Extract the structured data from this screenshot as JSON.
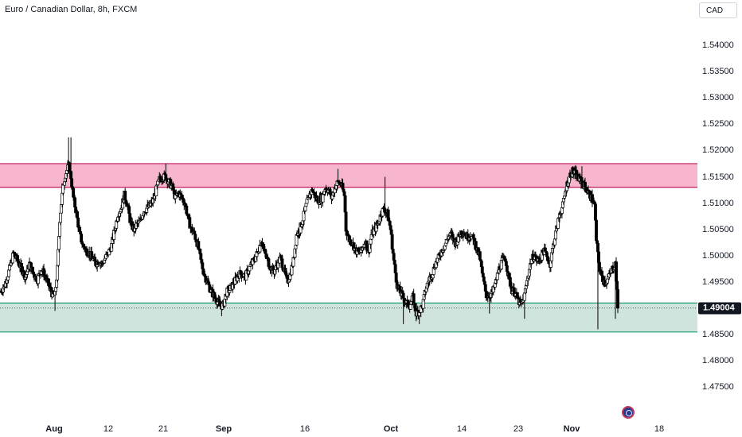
{
  "header": {
    "symbol_title": "Euro / Canadian Dollar, 8h, FXCM"
  },
  "price_axis": {
    "currency": "CAD",
    "ticks": [
      "1.54000",
      "1.53500",
      "1.53000",
      "1.52500",
      "1.52000",
      "1.51500",
      "1.51000",
      "1.50500",
      "1.50000",
      "1.49500",
      "1.49000",
      "1.48500",
      "1.48000",
      "1.47500"
    ],
    "last_price_label": "1.49004"
  },
  "time_axis": {
    "labels": [
      {
        "text": "Aug",
        "bold": true
      },
      {
        "text": "12",
        "bold": false
      },
      {
        "text": "21",
        "bold": false
      },
      {
        "text": "Sep",
        "bold": true
      },
      {
        "text": "16",
        "bold": false
      },
      {
        "text": "Oct",
        "bold": true
      },
      {
        "text": "14",
        "bold": false
      },
      {
        "text": "23",
        "bold": false
      },
      {
        "text": "Nov",
        "bold": true
      },
      {
        "text": "18",
        "bold": false
      }
    ]
  },
  "colors": {
    "bull_candle": "#ffffff",
    "bear_candle": "#000000",
    "candle_outline": "#000000",
    "resistance_zone": "#f7b6cd",
    "resistance_border": "#c2185b",
    "support_zone": "#d0e4de",
    "support_border": "#1a9e6e",
    "last_price_line": "#131722"
  },
  "chart_data": {
    "type": "candlestick",
    "title": "Euro / Canadian Dollar, 8h, FXCM",
    "ylim": [
      1.4725,
      1.5435
    ],
    "zones": [
      {
        "kind": "resistance",
        "low": 1.513,
        "high": 1.5175
      },
      {
        "kind": "support",
        "low": 1.4855,
        "high": 1.491
      }
    ],
    "last_price": 1.49004,
    "close_path": [
      [
        0,
        1.493
      ],
      [
        6,
        1.4945
      ],
      [
        12,
        1.4975
      ],
      [
        17,
        1.5005
      ],
      [
        22,
        1.499
      ],
      [
        27,
        1.4975
      ],
      [
        32,
        1.496
      ],
      [
        37,
        1.4985
      ],
      [
        42,
        1.4965
      ],
      [
        47,
        1.4955
      ],
      [
        52,
        1.4975
      ],
      [
        57,
        1.496
      ],
      [
        62,
        1.494
      ],
      [
        66,
        1.4925
      ],
      [
        69,
        1.4925
      ],
      [
        72,
        1.4975
      ],
      [
        75,
        1.507
      ],
      [
        79,
        1.513
      ],
      [
        82,
        1.5155
      ],
      [
        86,
        1.517
      ],
      [
        89,
        1.515
      ],
      [
        92,
        1.511
      ],
      [
        96,
        1.508
      ],
      [
        100,
        1.504
      ],
      [
        104,
        1.502
      ],
      [
        108,
        1.501
      ],
      [
        112,
        1.5005
      ],
      [
        116,
        1.4995
      ],
      [
        120,
        1.4985
      ],
      [
        124,
        1.499
      ],
      [
        128,
        1.4985
      ],
      [
        132,
        1.4995
      ],
      [
        136,
        1.5005
      ],
      [
        140,
        1.502
      ],
      [
        144,
        1.505
      ],
      [
        148,
        1.508
      ],
      [
        152,
        1.509
      ],
      [
        156,
        1.5115
      ],
      [
        160,
        1.5095
      ],
      [
        164,
        1.506
      ],
      [
        168,
        1.505
      ],
      [
        172,
        1.506
      ],
      [
        176,
        1.5065
      ],
      [
        180,
        1.5085
      ],
      [
        184,
        1.509
      ],
      [
        188,
        1.5095
      ],
      [
        192,
        1.5105
      ],
      [
        196,
        1.5125
      ],
      [
        200,
        1.5145
      ],
      [
        204,
        1.515
      ],
      [
        208,
        1.515
      ],
      [
        212,
        1.514
      ],
      [
        216,
        1.513
      ],
      [
        220,
        1.511
      ],
      [
        224,
        1.512
      ],
      [
        228,
        1.511
      ],
      [
        232,
        1.51
      ],
      [
        236,
        1.507
      ],
      [
        240,
        1.505
      ],
      [
        244,
        1.504
      ],
      [
        248,
        1.502
      ],
      [
        252,
        1.499
      ],
      [
        256,
        1.4965
      ],
      [
        260,
        1.495
      ],
      [
        264,
        1.4935
      ],
      [
        268,
        1.4925
      ],
      [
        272,
        1.4915
      ],
      [
        276,
        1.4905
      ],
      [
        280,
        1.4905
      ],
      [
        284,
        1.493
      ],
      [
        288,
        1.4935
      ],
      [
        292,
        1.4945
      ],
      [
        296,
        1.4955
      ],
      [
        300,
        1.4965
      ],
      [
        304,
        1.4965
      ],
      [
        308,
        1.496
      ],
      [
        312,
        1.4975
      ],
      [
        316,
        1.4985
      ],
      [
        320,
        1.4995
      ],
      [
        324,
        1.501
      ],
      [
        328,
        1.503
      ],
      [
        332,
        1.5005
      ],
      [
        336,
        1.499
      ],
      [
        340,
        1.4975
      ],
      [
        344,
        1.497
      ],
      [
        348,
        1.4985
      ],
      [
        352,
        1.4995
      ],
      [
        356,
        1.4975
      ],
      [
        360,
        1.495
      ],
      [
        364,
        1.4965
      ],
      [
        368,
        1.499
      ],
      [
        372,
        1.504
      ],
      [
        376,
        1.505
      ],
      [
        380,
        1.507
      ],
      [
        384,
        1.5095
      ],
      [
        388,
        1.5115
      ],
      [
        392,
        1.5125
      ],
      [
        396,
        1.511
      ],
      [
        400,
        1.5105
      ],
      [
        404,
        1.511
      ],
      [
        408,
        1.513
      ],
      [
        412,
        1.5125
      ],
      [
        416,
        1.511
      ],
      [
        420,
        1.513
      ],
      [
        424,
        1.514
      ],
      [
        428,
        1.5135
      ],
      [
        432,
        1.5115
      ],
      [
        434,
        1.505
      ],
      [
        438,
        1.503
      ],
      [
        442,
        1.5025
      ],
      [
        446,
        1.501
      ],
      [
        450,
        1.5005
      ],
      [
        454,
        1.501
      ],
      [
        458,
        1.503
      ],
      [
        462,
        1.5005
      ],
      [
        466,
        1.504
      ],
      [
        470,
        1.505
      ],
      [
        474,
        1.506
      ],
      [
        478,
        1.508
      ],
      [
        482,
        1.509
      ],
      [
        486,
        1.508
      ],
      [
        490,
        1.505
      ],
      [
        494,
        1.499
      ],
      [
        498,
        1.4945
      ],
      [
        502,
        1.493
      ],
      [
        506,
        1.492
      ],
      [
        510,
        1.491
      ],
      [
        514,
        1.4905
      ],
      [
        518,
        1.492
      ],
      [
        522,
        1.489
      ],
      [
        526,
        1.4895
      ],
      [
        530,
        1.4905
      ],
      [
        534,
        1.4935
      ],
      [
        538,
        1.4955
      ],
      [
        542,
        1.4965
      ],
      [
        546,
        1.4985
      ],
      [
        550,
        1.4995
      ],
      [
        554,
        1.501
      ],
      [
        558,
        1.502
      ],
      [
        562,
        1.5035
      ],
      [
        566,
        1.504
      ],
      [
        570,
        1.5025
      ],
      [
        574,
        1.503
      ],
      [
        578,
        1.5045
      ],
      [
        582,
        1.5045
      ],
      [
        586,
        1.5035
      ],
      [
        590,
        1.504
      ],
      [
        594,
        1.503
      ],
      [
        598,
        1.5015
      ],
      [
        602,
        1.4995
      ],
      [
        606,
        1.4955
      ],
      [
        610,
        1.4925
      ],
      [
        614,
        1.4925
      ],
      [
        618,
        1.493
      ],
      [
        622,
        1.495
      ],
      [
        626,
        1.4975
      ],
      [
        630,
        1.499
      ],
      [
        634,
        1.4995
      ],
      [
        638,
        1.496
      ],
      [
        642,
        1.4935
      ],
      [
        646,
        1.493
      ],
      [
        650,
        1.4915
      ],
      [
        654,
        1.4905
      ],
      [
        658,
        1.4925
      ],
      [
        662,
        1.496
      ],
      [
        666,
        1.499
      ],
      [
        670,
        1.5
      ],
      [
        674,
        1.499
      ],
      [
        678,
        1.4995
      ],
      [
        682,
        1.501
      ],
      [
        686,
        1.5
      ],
      [
        690,
        1.4985
      ],
      [
        694,
        1.502
      ],
      [
        698,
        1.505
      ],
      [
        702,
        1.508
      ],
      [
        706,
        1.5095
      ],
      [
        710,
        1.513
      ],
      [
        714,
        1.515
      ],
      [
        718,
        1.516
      ],
      [
        722,
        1.5155
      ],
      [
        726,
        1.5145
      ],
      [
        730,
        1.514
      ],
      [
        734,
        1.513
      ],
      [
        738,
        1.512
      ],
      [
        742,
        1.511
      ],
      [
        746,
        1.5095
      ],
      [
        748,
        1.503
      ],
      [
        752,
        1.4975
      ],
      [
        756,
        1.4955
      ],
      [
        760,
        1.495
      ],
      [
        764,
        1.496
      ],
      [
        768,
        1.4975
      ],
      [
        772,
        1.4985
      ],
      [
        775,
        1.49
      ]
    ],
    "wicks": [
      {
        "i": 69,
        "low": 1.4895
      },
      {
        "i": 86,
        "high": 1.5225
      },
      {
        "i": 89,
        "high": 1.5225
      },
      {
        "i": 208,
        "high": 1.5175
      },
      {
        "i": 278,
        "low": 1.4885
      },
      {
        "i": 424,
        "high": 1.5165
      },
      {
        "i": 483,
        "high": 1.515
      },
      {
        "i": 506,
        "low": 1.487
      },
      {
        "i": 526,
        "low": 1.487
      },
      {
        "i": 614,
        "low": 1.489
      },
      {
        "i": 658,
        "low": 1.488
      },
      {
        "i": 730,
        "high": 1.517
      },
      {
        "i": 750,
        "low": 1.486
      },
      {
        "i": 772,
        "low": 1.488
      }
    ]
  }
}
